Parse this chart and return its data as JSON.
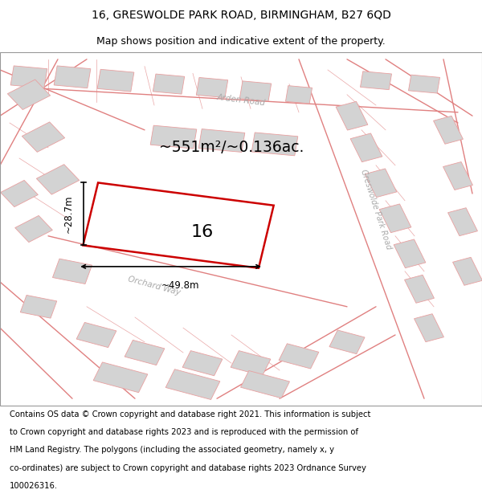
{
  "title": "16, GRESWOLDE PARK ROAD, BIRMINGHAM, B27 6QD",
  "subtitle": "Map shows position and indicative extent of the property.",
  "footer_text": "Contains OS data © Crown copyright and database right 2021. This information is subject to Crown copyright and database rights 2023 and is reproduced with the permission of HM Land Registry. The polygons (including the associated geometry, namely x, y co-ordinates) are subject to Crown copyright and database rights 2023 Ordnance Survey 100026316.",
  "area_text": "~551m²/~0.136ac.",
  "property_number": "16",
  "dim_width": "~49.8m",
  "dim_height": "~28.7m",
  "map_bg": "#f0f0f0",
  "building_fill": "#d3d3d3",
  "building_stroke": "#e8a0a0",
  "highlight_stroke": "#cc0000",
  "road_label_color": "#aaaaaa",
  "road_label_1": "Arden Road",
  "road_label_2": "Greswolde Park Road",
  "road_label_3": "Orchard Way",
  "title_fontsize": 10,
  "subtitle_fontsize": 9
}
